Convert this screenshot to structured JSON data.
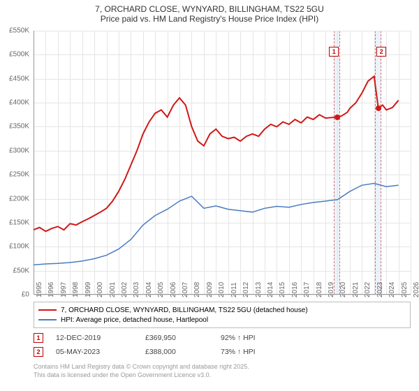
{
  "title_line1": "7, ORCHARD CLOSE, WYNYARD, BILLINGHAM, TS22 5GU",
  "title_line2": "Price paid vs. HM Land Registry's House Price Index (HPI)",
  "chart": {
    "type": "line",
    "x_years": [
      1995,
      1996,
      1997,
      1998,
      1999,
      2000,
      2001,
      2002,
      2003,
      2004,
      2005,
      2006,
      2007,
      2008,
      2009,
      2010,
      2011,
      2012,
      2013,
      2014,
      2015,
      2016,
      2017,
      2018,
      2019,
      2020,
      2021,
      2022,
      2023,
      2024,
      2025,
      2026
    ],
    "ylim": [
      0,
      550000
    ],
    "ytick_step": 50000,
    "y_labels": [
      "£0",
      "£50K",
      "£100K",
      "£150K",
      "£200K",
      "£250K",
      "£300K",
      "£350K",
      "£400K",
      "£450K",
      "£500K",
      "£550K"
    ],
    "background_color": "#ffffff",
    "grid_color": "#e5e5e5",
    "axis_color": "#999999",
    "series": [
      {
        "name": "7, ORCHARD CLOSE, WYNYARD, BILLINGHAM, TS22 5GU (detached house)",
        "color": "#d01818",
        "line_width": 2,
        "data": [
          [
            1995,
            135000
          ],
          [
            1995.5,
            140000
          ],
          [
            1996,
            132000
          ],
          [
            1996.5,
            138000
          ],
          [
            1997,
            142000
          ],
          [
            1997.5,
            135000
          ],
          [
            1998,
            148000
          ],
          [
            1998.5,
            145000
          ],
          [
            1999,
            152000
          ],
          [
            1999.5,
            158000
          ],
          [
            2000,
            165000
          ],
          [
            2000.5,
            172000
          ],
          [
            2001,
            180000
          ],
          [
            2001.5,
            195000
          ],
          [
            2002,
            215000
          ],
          [
            2002.5,
            240000
          ],
          [
            2003,
            270000
          ],
          [
            2003.5,
            300000
          ],
          [
            2004,
            335000
          ],
          [
            2004.5,
            360000
          ],
          [
            2005,
            378000
          ],
          [
            2005.5,
            385000
          ],
          [
            2006,
            370000
          ],
          [
            2006.5,
            395000
          ],
          [
            2007,
            410000
          ],
          [
            2007.5,
            395000
          ],
          [
            2008,
            350000
          ],
          [
            2008.5,
            320000
          ],
          [
            2009,
            310000
          ],
          [
            2009.5,
            335000
          ],
          [
            2010,
            345000
          ],
          [
            2010.5,
            330000
          ],
          [
            2011,
            325000
          ],
          [
            2011.5,
            328000
          ],
          [
            2012,
            320000
          ],
          [
            2012.5,
            330000
          ],
          [
            2013,
            335000
          ],
          [
            2013.5,
            330000
          ],
          [
            2014,
            345000
          ],
          [
            2014.5,
            355000
          ],
          [
            2015,
            350000
          ],
          [
            2015.5,
            360000
          ],
          [
            2016,
            355000
          ],
          [
            2016.5,
            365000
          ],
          [
            2017,
            358000
          ],
          [
            2017.5,
            370000
          ],
          [
            2018,
            365000
          ],
          [
            2018.5,
            375000
          ],
          [
            2019,
            368000
          ],
          [
            2019.9,
            370000
          ],
          [
            2020.3,
            372000
          ],
          [
            2020.8,
            380000
          ],
          [
            2021,
            388000
          ],
          [
            2021.5,
            400000
          ],
          [
            2022,
            420000
          ],
          [
            2022.5,
            445000
          ],
          [
            2023,
            455000
          ],
          [
            2023.35,
            388000
          ],
          [
            2023.7,
            395000
          ],
          [
            2024,
            385000
          ],
          [
            2024.5,
            390000
          ],
          [
            2025,
            405000
          ]
        ]
      },
      {
        "name": "HPI: Average price, detached house, Hartlepool",
        "color": "#4a7bc0",
        "line_width": 1.5,
        "data": [
          [
            1995,
            62000
          ],
          [
            1996,
            64000
          ],
          [
            1997,
            65000
          ],
          [
            1998,
            67000
          ],
          [
            1999,
            70000
          ],
          [
            2000,
            75000
          ],
          [
            2001,
            82000
          ],
          [
            2002,
            95000
          ],
          [
            2003,
            115000
          ],
          [
            2004,
            145000
          ],
          [
            2005,
            165000
          ],
          [
            2006,
            178000
          ],
          [
            2007,
            195000
          ],
          [
            2008,
            205000
          ],
          [
            2009,
            180000
          ],
          [
            2010,
            185000
          ],
          [
            2011,
            178000
          ],
          [
            2012,
            175000
          ],
          [
            2013,
            172000
          ],
          [
            2014,
            180000
          ],
          [
            2015,
            184000
          ],
          [
            2016,
            182000
          ],
          [
            2017,
            188000
          ],
          [
            2018,
            192000
          ],
          [
            2019,
            195000
          ],
          [
            2020,
            198000
          ],
          [
            2021,
            215000
          ],
          [
            2022,
            228000
          ],
          [
            2023,
            232000
          ],
          [
            2024,
            225000
          ],
          [
            2025,
            228000
          ]
        ]
      }
    ],
    "data_points": [
      {
        "x": 2019.95,
        "y": 369950,
        "color": "#d01818"
      },
      {
        "x": 2023.35,
        "y": 388000,
        "color": "#d01818"
      }
    ],
    "highlight_bands": [
      {
        "x_start": 2019.7,
        "x_end": 2020.2
      },
      {
        "x_start": 2023.1,
        "x_end": 2023.6
      }
    ],
    "markers": [
      {
        "label": "1",
        "x": 2019.7,
        "y_pos": 0.06
      },
      {
        "label": "2",
        "x": 2023.6,
        "y_pos": 0.06
      }
    ]
  },
  "legend": {
    "items": [
      {
        "color": "#d01818",
        "width": 2.5,
        "label": "7, ORCHARD CLOSE, WYNYARD, BILLINGHAM, TS22 5GU (detached house)"
      },
      {
        "color": "#4a7bc0",
        "width": 1.8,
        "label": "HPI: Average price, detached house, Hartlepool"
      }
    ]
  },
  "transactions": [
    {
      "marker": "1",
      "date": "12-DEC-2019",
      "price": "£369,950",
      "pct": "92% ↑ HPI"
    },
    {
      "marker": "2",
      "date": "05-MAY-2023",
      "price": "£388,000",
      "pct": "73% ↑ HPI"
    }
  ],
  "footer_line1": "Contains HM Land Registry data © Crown copyright and database right 2025.",
  "footer_line2": "This data is licensed under the Open Government Licence v3.0."
}
